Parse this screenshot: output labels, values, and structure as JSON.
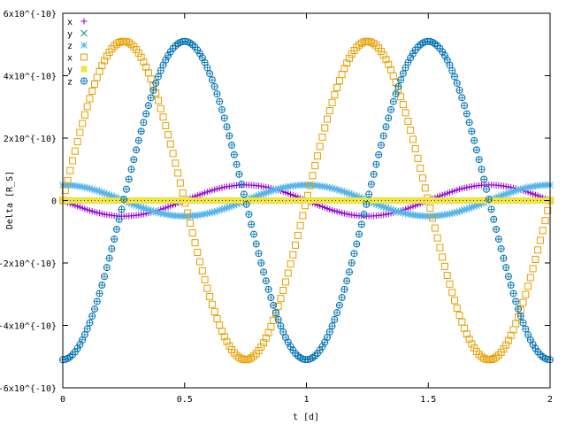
{
  "chart_data": {
    "type": "scatter",
    "title": "",
    "xlabel": "t [d]",
    "ylabel": "Delta [R_S]",
    "xlim": [
      0,
      2
    ],
    "ylim": [
      -6e-10,
      6e-10
    ],
    "x_ticks": [
      {
        "value": 0,
        "label": "0"
      },
      {
        "value": 0.5,
        "label": "0.5"
      },
      {
        "value": 1,
        "label": "1"
      },
      {
        "value": 1.5,
        "label": "1.5"
      },
      {
        "value": 2,
        "label": "2"
      }
    ],
    "y_ticks": [
      {
        "value": 6e-10,
        "label": "6x10^{-10}"
      },
      {
        "value": 4e-10,
        "label": "4x10^{-10}"
      },
      {
        "value": 2e-10,
        "label": "2x10^{-10}"
      },
      {
        "value": 0,
        "label": "0"
      },
      {
        "value": -2e-10,
        "label": "-2x10^{-10}"
      },
      {
        "value": -4e-10,
        "label": "-4x10^{-10}"
      },
      {
        "value": -6e-10,
        "label": "-6x10^{-10}"
      }
    ],
    "grid": false,
    "legend_position": "top-left",
    "n_points": 200,
    "series": [
      {
        "name": "x",
        "marker": "plus",
        "color": "#9400d3",
        "model": {
          "amplitude": 5e-11,
          "period": 1,
          "phase_cycles": 0.25,
          "offset": 0
        }
      },
      {
        "name": "y",
        "marker": "cross",
        "color": "#009e73",
        "model": {
          "amplitude": 0,
          "period": 1,
          "phase_cycles": 0,
          "offset": 0
        }
      },
      {
        "name": "z",
        "marker": "star",
        "color": "#56b4e9",
        "model": {
          "amplitude": 5e-11,
          "period": 1,
          "phase_cycles": 0,
          "offset": 0
        }
      },
      {
        "name": "x",
        "marker": "open-square",
        "color": "#e69f00",
        "model": {
          "amplitude": -5.1e-10,
          "period": 1,
          "phase_cycles": 0.25,
          "offset": 0
        }
      },
      {
        "name": "y",
        "marker": "filled-square",
        "color": "#f0e442",
        "model": {
          "amplitude": 0,
          "period": 1,
          "phase_cycles": 0,
          "offset": 0
        }
      },
      {
        "name": "z",
        "marker": "open-circle",
        "color": "#0072b2",
        "model": {
          "amplitude": -5.1e-10,
          "period": 1,
          "phase_cycles": 0,
          "offset": 0
        }
      }
    ]
  }
}
